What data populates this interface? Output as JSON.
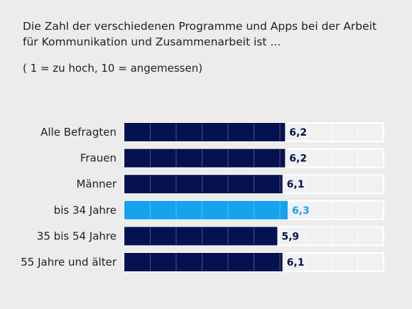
{
  "title_lines": [
    "Die Zahl der verschiedenen Programme und Apps bei der Arbeit",
    "für Kommunikation und Zusammenarbeit ist ..."
  ],
  "subtitle": "( 1 = zu hoch, 10 = angemessen)",
  "colors": {
    "background": "#ececec",
    "bar_default": "#061250",
    "bar_highlight": "#15a3ee",
    "track_fill": "#f1f1f1",
    "track_border": "#ffffff",
    "text": "#1f1f1f"
  },
  "chart_data": {
    "type": "bar",
    "orientation": "horizontal",
    "scale": [
      0,
      10
    ],
    "categories": [
      "Alle Befragten",
      "Frauen",
      "Männer",
      "bis 34 Jahre",
      "35 bis 54 Jahre",
      "55 Jahre und älter"
    ],
    "values": [
      6.2,
      6.2,
      6.1,
      6.3,
      5.9,
      6.1
    ],
    "value_labels": [
      "6,2",
      "6,2",
      "6,1",
      "6,3",
      "5,9",
      "6,1"
    ],
    "highlight_index": 3,
    "grid": true
  }
}
